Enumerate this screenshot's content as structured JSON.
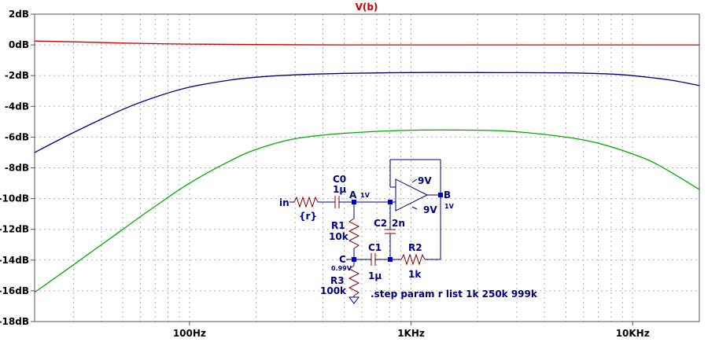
{
  "chart_data": {
    "type": "line",
    "title": "V(b)",
    "xscale": "log",
    "xlim": [
      20,
      20000
    ],
    "ylim": [
      -18,
      2
    ],
    "grid": true,
    "y_ticks": [
      "2dB",
      "0dB",
      "-2dB",
      "-4dB",
      "-6dB",
      "-8dB",
      "-10dB",
      "-12dB",
      "-14dB",
      "-16dB",
      "-18dB"
    ],
    "y_tick_values": [
      2,
      0,
      -2,
      -4,
      -6,
      -8,
      -10,
      -12,
      -14,
      -16,
      -18
    ],
    "x_ticks": [
      "100Hz",
      "1KHz",
      "10KHz"
    ],
    "x_tick_values": [
      100,
      1000,
      10000
    ],
    "colors": {
      "title": "#cc0000",
      "series": [
        "#cc0000",
        "#000080",
        "#00aa00"
      ]
    },
    "series": [
      {
        "x": [
          20,
          30,
          50,
          70,
          100,
          200,
          500,
          1000,
          2000,
          5000,
          10000,
          20000
        ],
        "y": [
          0.25,
          0.2,
          0.12,
          0.08,
          0.05,
          0.02,
          0.0,
          0.0,
          0.0,
          0.0,
          0.0,
          0.0
        ]
      },
      {
        "x": [
          20,
          30,
          50,
          70,
          100,
          150,
          200,
          300,
          500,
          1000,
          2000,
          5000,
          8000,
          10000,
          15000,
          20000
        ],
        "y": [
          -7.0,
          -5.7,
          -4.2,
          -3.4,
          -2.75,
          -2.3,
          -2.1,
          -1.95,
          -1.85,
          -1.8,
          -1.8,
          -1.82,
          -1.9,
          -2.0,
          -2.3,
          -2.65
        ]
      },
      {
        "x": [
          20,
          30,
          50,
          70,
          100,
          150,
          200,
          300,
          500,
          1000,
          2000,
          3000,
          5000,
          7000,
          10000,
          13000,
          20000
        ],
        "y": [
          -16.1,
          -14.3,
          -12.0,
          -10.5,
          -9.0,
          -7.6,
          -6.8,
          -6.1,
          -5.75,
          -5.55,
          -5.55,
          -5.65,
          -6.0,
          -6.4,
          -7.1,
          -7.8,
          -9.4
        ]
      }
    ]
  },
  "schematic": {
    "labels": {
      "in": "in",
      "r": "{r}",
      "c0_name": "C0",
      "c0_val": "1µ",
      "node_a": "A",
      "node_a_v": "1V",
      "op_vpos": "9V",
      "op_vneg": "9V",
      "node_b": "B",
      "node_b_v": "1V",
      "r1_name": "R1",
      "r1_val": "10k",
      "c2_name": "C2",
      "c2_val": "2n",
      "node_c": "C",
      "node_c_v": "0.99V",
      "c1_name": "C1",
      "c1_val": "1µ",
      "r2_name": "R2",
      "r2_val": "1k",
      "r3_name": "R3",
      "r3_val": "100k",
      "directive": ".step param r list 1k 250k 999k"
    }
  }
}
